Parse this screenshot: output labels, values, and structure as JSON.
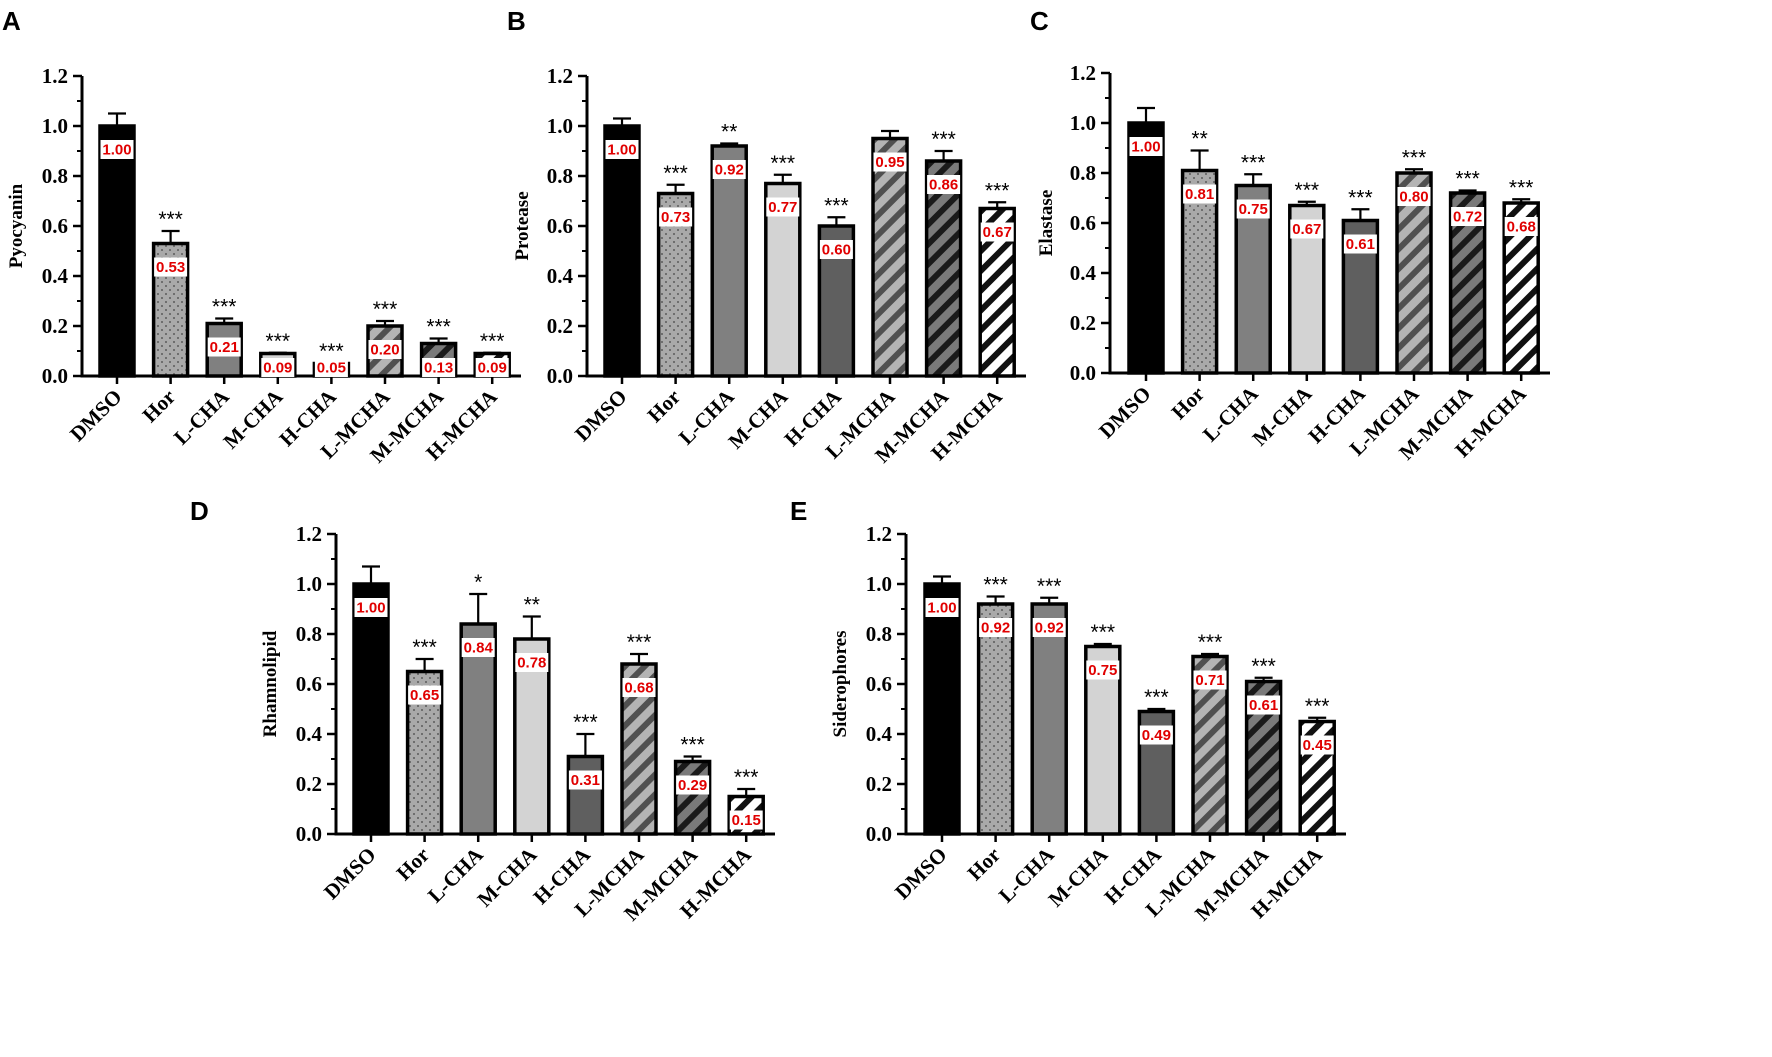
{
  "colors": {
    "value_label": "#e00000",
    "axis": "#000000"
  },
  "chart_data": [
    {
      "panel": "A",
      "type": "bar",
      "ylabel": "Pyocyanin",
      "ylim": [
        0,
        1.2
      ],
      "yticks": [
        "0.0",
        "0.2",
        "0.4",
        "0.6",
        "0.8",
        "1.0",
        "1.2"
      ],
      "categories": [
        "DMSO",
        "Hor",
        "L-CHA",
        "M-CHA",
        "H-CHA",
        "L-MCHA",
        "M-MCHA",
        "H-MCHA"
      ],
      "values": [
        1.0,
        0.53,
        0.21,
        0.09,
        0.05,
        0.2,
        0.13,
        0.09
      ],
      "labels": [
        "1.00",
        "0.53",
        "0.21",
        "0.09",
        "0.05",
        "0.20",
        "0.13",
        "0.09"
      ],
      "errors": [
        0.05,
        0.05,
        0.02,
        0.003,
        0.003,
        0.02,
        0.02,
        0.003
      ],
      "significance": [
        "",
        "***",
        "***",
        "***",
        "***",
        "***",
        "***",
        "***"
      ]
    },
    {
      "panel": "B",
      "type": "bar",
      "ylabel": "Protease",
      "ylim": [
        0,
        1.2
      ],
      "yticks": [
        "0.0",
        "0.2",
        "0.4",
        "0.6",
        "0.8",
        "1.0",
        "1.2"
      ],
      "categories": [
        "DMSO",
        "Hor",
        "L-CHA",
        "M-CHA",
        "H-CHA",
        "L-MCHA",
        "M-MCHA",
        "H-MCHA"
      ],
      "values": [
        1.0,
        0.73,
        0.92,
        0.77,
        0.6,
        0.95,
        0.86,
        0.67
      ],
      "labels": [
        "1.00",
        "0.73",
        "0.92",
        "0.77",
        "0.60",
        "0.95",
        "0.86",
        "0.67"
      ],
      "errors": [
        0.03,
        0.035,
        0.01,
        0.035,
        0.035,
        0.03,
        0.04,
        0.025
      ],
      "significance": [
        "",
        "***",
        "**",
        "***",
        "***",
        "",
        "***",
        "***"
      ]
    },
    {
      "panel": "C",
      "type": "bar",
      "ylabel": "Elastase",
      "ylim": [
        0,
        1.2
      ],
      "yticks": [
        "0.0",
        "0.2",
        "0.4",
        "0.6",
        "0.8",
        "1.0",
        "1.2"
      ],
      "categories": [
        "DMSO",
        "Hor",
        "L-CHA",
        "M-CHA",
        "H-CHA",
        "L-MCHA",
        "M-MCHA",
        "H-MCHA"
      ],
      "values": [
        1.0,
        0.81,
        0.75,
        0.67,
        0.61,
        0.8,
        0.72,
        0.68
      ],
      "labels": [
        "1.00",
        "0.81",
        "0.75",
        "0.67",
        "0.61",
        "0.80",
        "0.72",
        "0.68"
      ],
      "errors": [
        0.06,
        0.08,
        0.045,
        0.015,
        0.045,
        0.015,
        0.01,
        0.015
      ],
      "significance": [
        "",
        "**",
        "***",
        "***",
        "***",
        "***",
        "***",
        "***"
      ]
    },
    {
      "panel": "D",
      "type": "bar",
      "ylabel": "Rhamnolipid",
      "ylim": [
        0,
        1.2
      ],
      "yticks": [
        "0.0",
        "0.2",
        "0.4",
        "0.6",
        "0.8",
        "1.0",
        "1.2"
      ],
      "categories": [
        "DMSO",
        "Hor",
        "L-CHA",
        "M-CHA",
        "H-CHA",
        "L-MCHA",
        "M-MCHA",
        "H-MCHA"
      ],
      "values": [
        1.0,
        0.65,
        0.84,
        0.78,
        0.31,
        0.68,
        0.29,
        0.15
      ],
      "labels": [
        "1.00",
        "0.65",
        "0.84",
        "0.78",
        "0.31",
        "0.68",
        "0.29",
        "0.15"
      ],
      "errors": [
        0.07,
        0.05,
        0.12,
        0.09,
        0.09,
        0.04,
        0.02,
        0.03
      ],
      "significance": [
        "",
        "***",
        "*",
        "**",
        "***",
        "***",
        "***",
        "***"
      ]
    },
    {
      "panel": "E",
      "type": "bar",
      "ylabel": "Siderophores",
      "ylim": [
        0,
        1.2
      ],
      "yticks": [
        "0.0",
        "0.2",
        "0.4",
        "0.6",
        "0.8",
        "1.0",
        "1.2"
      ],
      "categories": [
        "DMSO",
        "Hor",
        "L-CHA",
        "M-CHA",
        "H-CHA",
        "L-MCHA",
        "M-MCHA",
        "H-MCHA"
      ],
      "values": [
        1.0,
        0.92,
        0.92,
        0.75,
        0.49,
        0.71,
        0.61,
        0.45
      ],
      "labels": [
        "1.00",
        "0.92",
        "0.92",
        "0.75",
        "0.49",
        "0.71",
        "0.61",
        "0.45"
      ],
      "errors": [
        0.03,
        0.03,
        0.025,
        0.01,
        0.01,
        0.01,
        0.015,
        0.015
      ],
      "significance": [
        "",
        "***",
        "***",
        "***",
        "***",
        "***",
        "***",
        "***"
      ]
    }
  ]
}
